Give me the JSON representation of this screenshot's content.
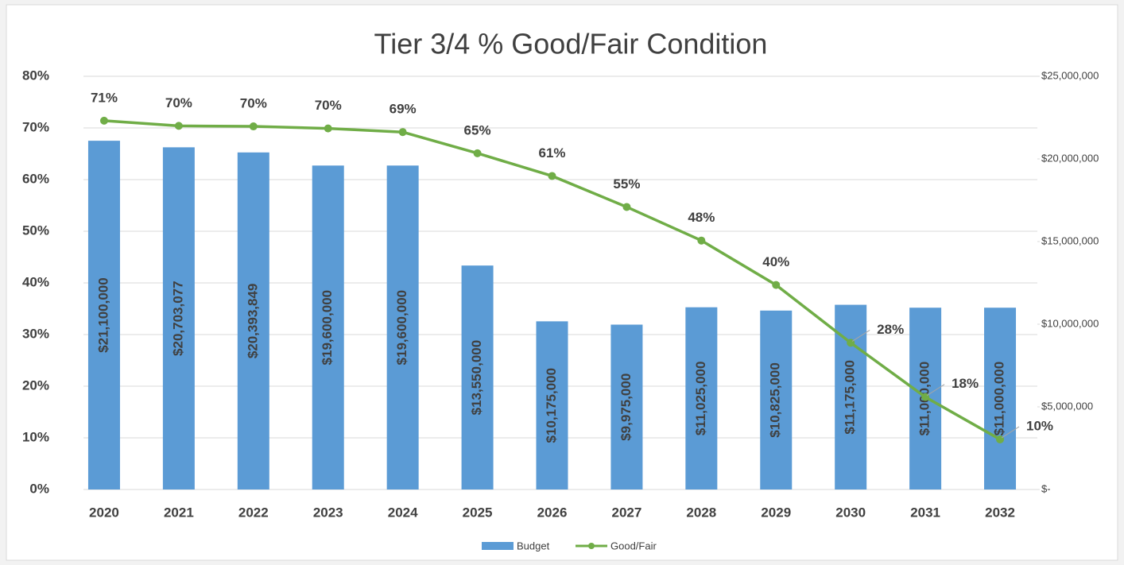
{
  "chart_data": {
    "type": "bar_line",
    "title": "Tier 3/4 % Good/Fair Condition",
    "categories": [
      "2020",
      "2021",
      "2022",
      "2023",
      "2024",
      "2025",
      "2026",
      "2027",
      "2028",
      "2029",
      "2030",
      "2031",
      "2032"
    ],
    "series": [
      {
        "name": "Budget",
        "type": "bar",
        "axis": "y2",
        "color": "#5b9bd5",
        "values": [
          21100000,
          20703077,
          20393849,
          19600000,
          19600000,
          13550000,
          10175000,
          9975000,
          11025000,
          10825000,
          11175000,
          11000000,
          11000000
        ],
        "value_labels": [
          "$21,100,000",
          "$20,703,077",
          "$20,393,849",
          "$19,600,000",
          "$19,600,000",
          "$13,550,000",
          "$10,175,000",
          "$9,975,000",
          "$11,025,000",
          "$10,825,000",
          "$11,175,000",
          "$11,000,000",
          "$11,000,000"
        ]
      },
      {
        "name": "Good/Fair",
        "type": "line",
        "axis": "y",
        "color": "#70ad47",
        "values": [
          71.4,
          70.4,
          70.3,
          69.9,
          69.2,
          65.1,
          60.7,
          54.7,
          48.2,
          39.6,
          28.4,
          17.9,
          9.7
        ],
        "value_labels": [
          "71%",
          "70%",
          "70%",
          "70%",
          "69%",
          "65%",
          "61%",
          "55%",
          "48%",
          "40%",
          "28%",
          "18%",
          "10%"
        ]
      }
    ],
    "ylim": [
      0,
      80
    ],
    "yticks": [
      {
        "value": 0,
        "label": "0%"
      },
      {
        "value": 10,
        "label": "10%"
      },
      {
        "value": 20,
        "label": "20%"
      },
      {
        "value": 30,
        "label": "30%"
      },
      {
        "value": 40,
        "label": "40%"
      },
      {
        "value": 50,
        "label": "50%"
      },
      {
        "value": 60,
        "label": "60%"
      },
      {
        "value": 70,
        "label": "70%"
      },
      {
        "value": 80,
        "label": "80%"
      }
    ],
    "y2lim": [
      0,
      25000000
    ],
    "y2ticks": [
      {
        "value": 0,
        "label": "$-"
      },
      {
        "value": 5000000,
        "label": "$5,000,000"
      },
      {
        "value": 10000000,
        "label": "$10,000,000"
      },
      {
        "value": 15000000,
        "label": "$15,000,000"
      },
      {
        "value": 20000000,
        "label": "$20,000,000"
      },
      {
        "value": 25000000,
        "label": "$25,000,000"
      }
    ],
    "grid": true,
    "legend": "bottom"
  }
}
